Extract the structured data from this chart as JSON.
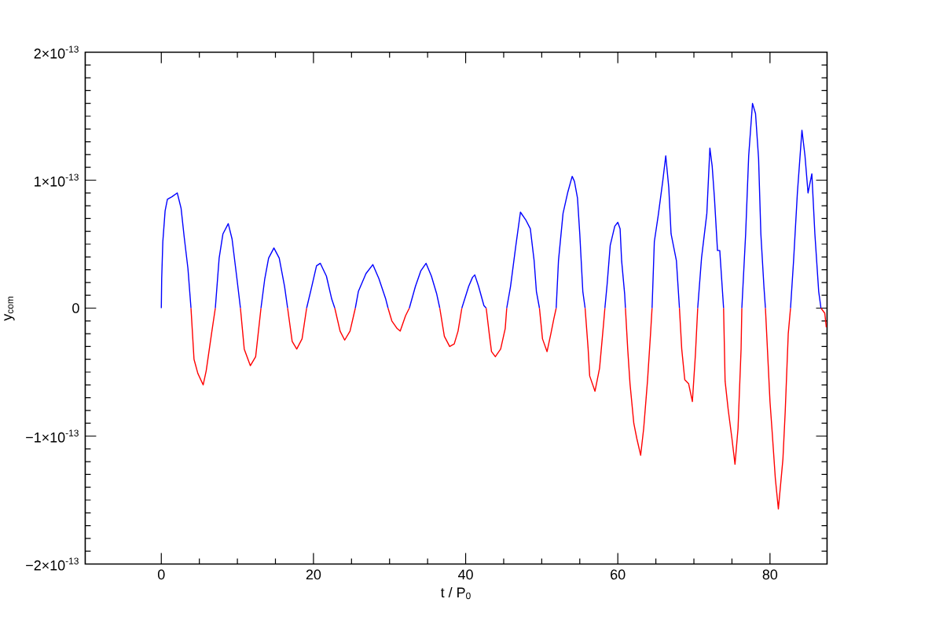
{
  "chart_data": {
    "type": "line",
    "xlabel": "t / P$_{0}$",
    "ylabel": "y$_{com}$",
    "xlim": [
      -10,
      87.5
    ],
    "ylim": [
      -2e-13,
      2e-13
    ],
    "xticks": [
      0,
      20,
      40,
      60,
      80
    ],
    "yticks": [
      {
        "value": -2e-13,
        "label": "−2×10$^{-13}$"
      },
      {
        "value": -1e-13,
        "label": "−1×10$^{-13}$"
      },
      {
        "value": 0,
        "label": "0"
      },
      {
        "value": 1e-13,
        "label": "1×10$^{-13}$"
      },
      {
        "value": 2e-13,
        "label": "2×10$^{-13}$"
      }
    ],
    "line_style": "solid",
    "series": [
      {
        "color": "#0000ff",
        "x": [
          0,
          0.05,
          0.2,
          0.5,
          0.8,
          1.4,
          2.1,
          2.6,
          3.0,
          3.5,
          3.9
        ],
        "values": [
          0,
          2.3e-14,
          5.2e-14,
          7.6e-14,
          8.5e-14,
          8.7e-14,
          9e-14,
          7.8e-14,
          5.6e-14,
          3.1e-14,
          0
        ]
      },
      {
        "color": "#ff0000",
        "x": [
          3.9,
          4.3,
          4.8,
          5.5,
          5.9,
          6.6,
          7.1
        ],
        "values": [
          0,
          -4e-14,
          -5.1e-14,
          -6e-14,
          -4.9e-14,
          -2e-14,
          0
        ]
      },
      {
        "color": "#0000ff",
        "x": [
          7.1,
          7.6,
          8.1,
          8.8,
          9.3,
          9.9,
          10.4
        ],
        "values": [
          0,
          3.9e-14,
          5.8e-14,
          6.6e-14,
          5.4e-14,
          2.5e-14,
          0
        ]
      },
      {
        "color": "#ff0000",
        "x": [
          10.4,
          10.9,
          11.7,
          12.4,
          13.1
        ],
        "values": [
          0,
          -3.2e-14,
          -4.5e-14,
          -3.8e-14,
          0
        ]
      },
      {
        "color": "#0000ff",
        "x": [
          13.1,
          13.6,
          14.1,
          14.8,
          15.5,
          16.2,
          16.6
        ],
        "values": [
          0,
          2.3e-14,
          3.9e-14,
          4.7e-14,
          3.9e-14,
          1.7e-14,
          0
        ]
      },
      {
        "color": "#ff0000",
        "x": [
          16.6,
          17.2,
          17.8,
          18.5,
          19.1
        ],
        "values": [
          0,
          -2.6e-14,
          -3.2e-14,
          -2.4e-14,
          0
        ]
      },
      {
        "color": "#0000ff",
        "x": [
          19.1,
          19.7,
          20.4,
          20.9,
          21.7,
          22.4,
          22.8
        ],
        "values": [
          0,
          1.5e-14,
          3.3e-14,
          3.5e-14,
          2.5e-14,
          7e-15,
          0
        ]
      },
      {
        "color": "#ff0000",
        "x": [
          22.8,
          23.5,
          24.1,
          24.8,
          25.5
        ],
        "values": [
          0,
          -1.8e-14,
          -2.5e-14,
          -1.8e-14,
          0
        ]
      },
      {
        "color": "#0000ff",
        "x": [
          25.5,
          25.9,
          26.9,
          27.8,
          28.6,
          29.5,
          29.8
        ],
        "values": [
          0,
          1.3e-14,
          2.7e-14,
          3.4e-14,
          2.3e-14,
          7e-15,
          0
        ]
      },
      {
        "color": "#ff0000",
        "x": [
          29.8,
          30.3,
          31.0,
          31.4,
          32.1,
          32.6
        ],
        "values": [
          0,
          -1e-14,
          -1.6e-14,
          -1.8e-14,
          -6e-15,
          0
        ]
      },
      {
        "color": "#0000ff",
        "x": [
          32.6,
          33.4,
          34.1,
          34.8,
          35.5,
          36.2,
          36.6
        ],
        "values": [
          0,
          1.7e-14,
          2.9e-14,
          3.5e-14,
          2.5e-14,
          1.1e-14,
          0
        ]
      },
      {
        "color": "#ff0000",
        "x": [
          36.6,
          37.2,
          37.9,
          38.5,
          39.0,
          39.5
        ],
        "values": [
          0,
          -2.2e-14,
          -3e-14,
          -2.8e-14,
          -1.8e-14,
          0
        ]
      },
      {
        "color": "#0000ff",
        "x": [
          39.5,
          40.4,
          40.9,
          41.2,
          41.7,
          42.4,
          42.7
        ],
        "values": [
          0,
          1.7e-14,
          2.4e-14,
          2.6e-14,
          1.7e-14,
          2e-15,
          0
        ]
      },
      {
        "color": "#ff0000",
        "x": [
          42.7,
          43.1,
          43.4,
          43.9,
          44.6,
          45.2,
          45.4
        ],
        "values": [
          0,
          -2e-14,
          -3.4e-14,
          -3.8e-14,
          -3.2e-14,
          -1.6e-14,
          0
        ]
      },
      {
        "color": "#0000ff",
        "x": [
          45.4,
          45.9,
          46.6,
          47.2,
          47.9,
          48.5,
          49.0,
          49.3,
          49.7
        ],
        "values": [
          0,
          1.7e-14,
          4.9e-14,
          7.5e-14,
          6.9e-14,
          6.2e-14,
          3.7e-14,
          1.3e-14,
          0
        ]
      },
      {
        "color": "#ff0000",
        "x": [
          49.7,
          50.1,
          50.7,
          51.2,
          51.6,
          51.9
        ],
        "values": [
          0,
          -2.4e-14,
          -3.4e-14,
          -2e-14,
          -8e-15,
          0
        ]
      },
      {
        "color": "#0000ff",
        "x": [
          51.9,
          52.2,
          52.8,
          53.4,
          54.0,
          54.3,
          54.7,
          55.0,
          55.4,
          55.7
        ],
        "values": [
          0,
          3.7e-14,
          7.4e-14,
          9e-14,
          1.03e-13,
          9.9e-14,
          8.6e-14,
          5.8e-14,
          1.3e-14,
          0
        ]
      },
      {
        "color": "#ff0000",
        "x": [
          55.7,
          56.1,
          56.3,
          57.0,
          57.6,
          58.1,
          58.3
        ],
        "values": [
          0,
          -3.2e-14,
          -5.3e-14,
          -6.5e-14,
          -4.7e-14,
          -1.4e-14,
          0
        ]
      },
      {
        "color": "#0000ff",
        "x": [
          58.3,
          58.6,
          59.0,
          59.6,
          60.0,
          60.3,
          60.5,
          60.9,
          61.0
        ],
        "values": [
          0,
          1.9e-14,
          4.9e-14,
          6.4e-14,
          6.7e-14,
          6.2e-14,
          3.7e-14,
          1.1e-14,
          0
        ]
      },
      {
        "color": "#ff0000",
        "x": [
          61.0,
          61.3,
          61.6,
          62.1,
          62.5,
          63.0,
          63.4,
          63.9,
          64.3,
          64.5
        ],
        "values": [
          0,
          -3.2e-14,
          -5.9e-14,
          -9e-14,
          -1.02e-13,
          -1.15e-13,
          -9.4e-14,
          -5.7e-14,
          -2e-14,
          0
        ]
      },
      {
        "color": "#0000ff",
        "x": [
          64.5,
          64.8,
          65.3,
          65.9,
          66.3,
          66.7,
          67.0,
          67.7,
          68.1
        ],
        "values": [
          0,
          5.2e-14,
          7.2e-14,
          9.9e-14,
          1.19e-13,
          9.4e-14,
          5.8e-14,
          3.7e-14,
          0
        ]
      },
      {
        "color": "#ff0000",
        "x": [
          68.1,
          68.4,
          68.8,
          69.3,
          69.8,
          70.2,
          70.5
        ],
        "values": [
          0,
          -3.2e-14,
          -5.6e-14,
          -5.9e-14,
          -7.3e-14,
          -3.6e-14,
          0
        ]
      },
      {
        "color": "#0000ff",
        "x": [
          70.5,
          71.0,
          71.7,
          72.1,
          72.4,
          72.7,
          73.1,
          73.4,
          73.9
        ],
        "values": [
          0,
          3.9e-14,
          7.4e-14,
          1.25e-13,
          1.11e-13,
          8.6e-14,
          4.5e-14,
          4.5e-14,
          0
        ]
      },
      {
        "color": "#ff0000",
        "x": [
          73.9,
          74.1,
          74.5,
          75.0,
          75.4,
          75.8,
          76.2,
          76.3
        ],
        "values": [
          0,
          -5.7e-14,
          -7.9e-14,
          -1.02e-13,
          -1.22e-13,
          -9.4e-14,
          -3.2e-14,
          0
        ]
      },
      {
        "color": "#0000ff",
        "x": [
          76.3,
          76.8,
          77.2,
          77.7,
          78.1,
          78.5,
          78.8,
          79.2,
          79.4
        ],
        "values": [
          0,
          5.8e-14,
          1.19e-13,
          1.6e-13,
          1.52e-13,
          1.17e-13,
          5.8e-14,
          1.7e-14,
          0
        ]
      },
      {
        "color": "#ff0000",
        "x": [
          79.4,
          80.0,
          80.3,
          80.7,
          81.1,
          81.7,
          82.0,
          82.4,
          82.7
        ],
        "values": [
          0,
          -7.3e-14,
          -9.8e-14,
          -1.33e-13,
          -1.57e-13,
          -1.18e-13,
          -8.1e-14,
          -2e-14,
          0
        ]
      },
      {
        "color": "#0000ff",
        "x": [
          82.7,
          83.1,
          83.6,
          84.2,
          84.6,
          85.0,
          85.5,
          85.9,
          86.4,
          86.7
        ],
        "values": [
          0,
          3.7e-14,
          9e-14,
          1.39e-13,
          1.19e-13,
          9e-14,
          1.05e-13,
          5.8e-14,
          1.3e-14,
          0
        ]
      },
      {
        "color": "#ff0000",
        "x": [
          86.7,
          87.2,
          87.4
        ],
        "values": [
          0,
          -4e-15,
          -1.5e-14
        ]
      }
    ]
  }
}
